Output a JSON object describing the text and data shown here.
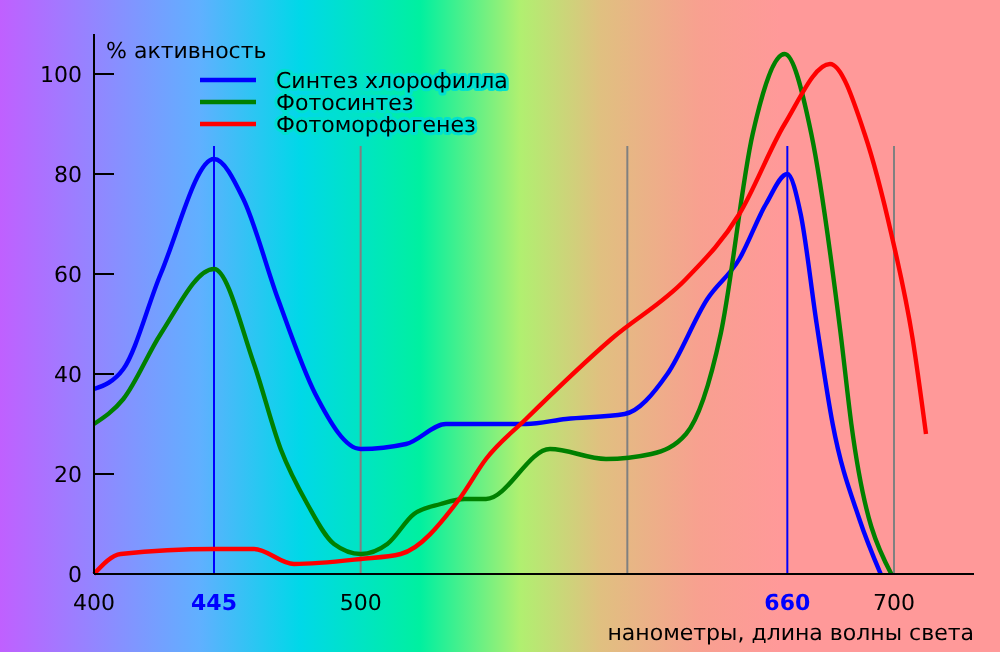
{
  "chart_data": {
    "type": "line",
    "ylabel": "% активность",
    "xlabel": "нанометры, длина волны света",
    "xlim": [
      400,
      730
    ],
    "ylim": [
      0,
      108
    ],
    "xticks": [
      400,
      445,
      500,
      660,
      700
    ],
    "yticks": [
      0,
      20,
      40,
      60,
      80,
      100
    ],
    "legend": "top",
    "grid": false,
    "marker": "none",
    "line_style": "solid",
    "ref_lines": [
      {
        "axis": "x",
        "value": 445,
        "color": "#0000ff"
      },
      {
        "axis": "x",
        "value": 500,
        "color": "#808080"
      },
      {
        "axis": "x",
        "value": 600,
        "color": "#808080"
      },
      {
        "axis": "x",
        "value": 660,
        "color": "#0000ff"
      },
      {
        "axis": "x",
        "value": 700,
        "color": "#808080"
      }
    ],
    "series": [
      {
        "name": "Синтез хлорофилла",
        "color": "#0000ff",
        "x": [
          400,
          411,
          425,
          445,
          456,
          469,
          483,
          500,
          517,
          532,
          547,
          562,
          577,
          599,
          615,
          630,
          642,
          652,
          660,
          665,
          671,
          677,
          687,
          695
        ],
        "values": [
          37,
          41,
          60,
          83,
          75,
          55,
          36,
          25,
          26,
          30,
          30,
          30,
          31,
          32,
          40,
          55,
          63,
          74,
          80,
          72,
          50,
          30,
          11,
          0
        ]
      },
      {
        "name": "Фотосинтез",
        "color": "#008000",
        "x": [
          400,
          411,
          425,
          445,
          460,
          470,
          480,
          490,
          500,
          510,
          520,
          530,
          539,
          547,
          571,
          592,
          609,
          622,
          635,
          647,
          659,
          669,
          680,
          684,
          699
        ],
        "values": [
          30,
          35,
          48,
          61,
          42,
          25,
          14,
          6,
          4,
          6,
          12,
          14,
          15,
          15,
          25,
          23,
          24,
          28,
          48,
          88,
          104,
          88,
          48,
          30,
          0
        ]
      },
      {
        "name": "Фотоморфогенез",
        "color": "#ff0000",
        "x": [
          400,
          410,
          445,
          460,
          475,
          500,
          515,
          537,
          547,
          562,
          594,
          622,
          642,
          659,
          676,
          689,
          699,
          707,
          712
        ],
        "values": [
          0,
          4,
          5,
          5,
          2,
          3,
          4,
          15,
          23,
          31,
          47,
          59,
          72,
          90,
          102,
          88,
          68,
          47,
          28
        ]
      }
    ]
  }
}
